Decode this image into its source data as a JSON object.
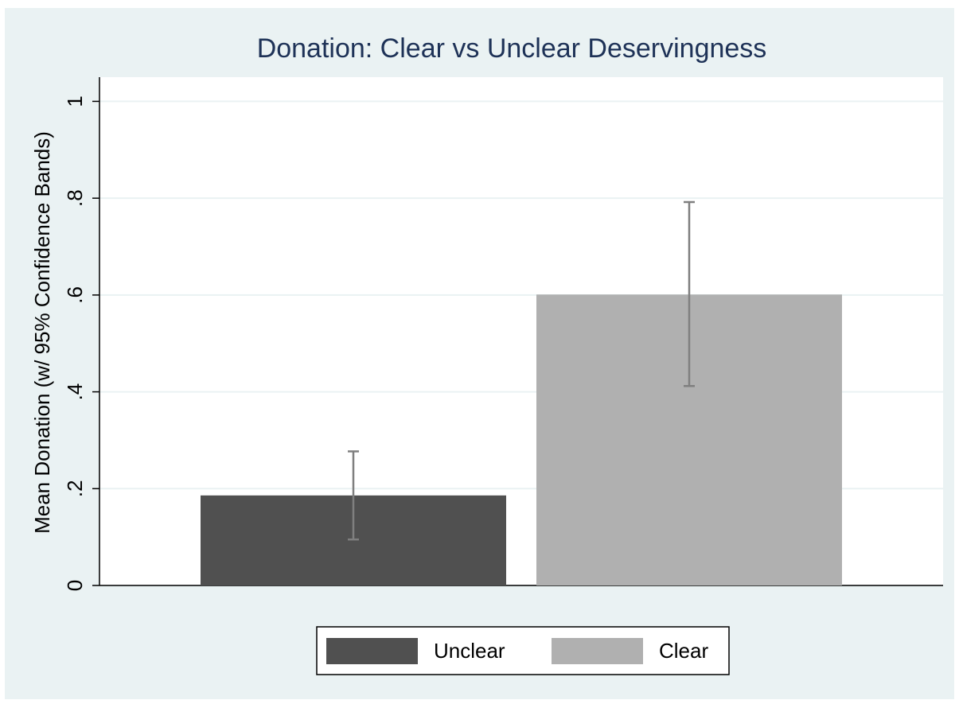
{
  "chart_data": {
    "type": "bar",
    "title": "Donation: Clear vs Unclear Deservingness",
    "y_label": "Mean Donation (w/ 95% Confidence Bands)",
    "series": [
      {
        "name": "Unclear",
        "color": "#505050",
        "values": [
          0.186
        ],
        "ci_low": [
          0.095
        ],
        "ci_high": [
          0.277
        ]
      },
      {
        "name": "Clear",
        "color": "#b0b0b0",
        "values": [
          0.601
        ],
        "ci_low": [
          0.412
        ],
        "ci_high": [
          0.792
        ]
      }
    ],
    "error_color": "#7f7f7f",
    "ylim": [
      0,
      1.05
    ],
    "yticks": [
      0,
      {
        "value": 0.2,
        "label": ".2"
      },
      {
        "value": 0.4,
        "label": ".4"
      },
      {
        "value": 0.6,
        "label": ".6"
      },
      {
        "value": 0.8,
        "label": ".8"
      },
      1
    ],
    "grid": true,
    "legend": "bottom"
  }
}
